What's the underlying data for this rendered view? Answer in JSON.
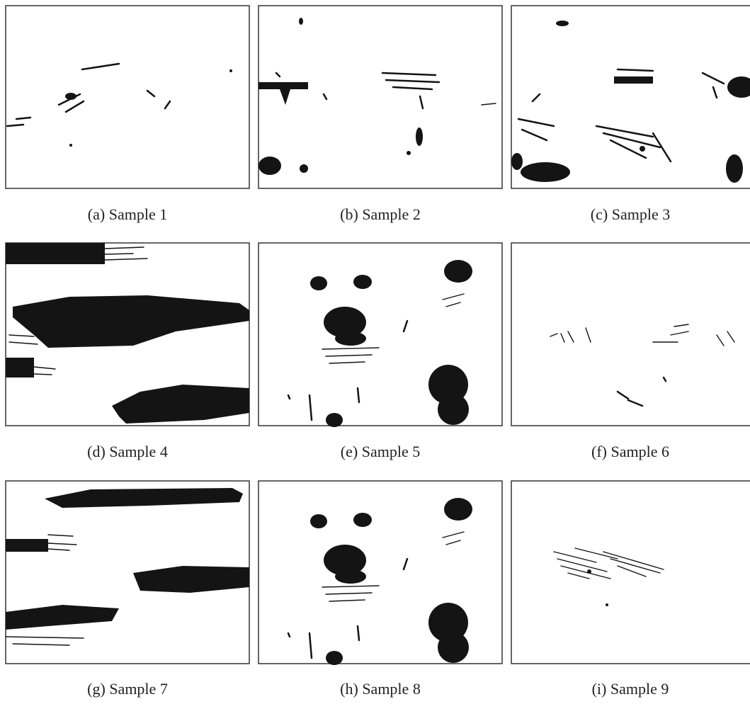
{
  "panels": [
    {
      "caption": "(a) Sample 1"
    },
    {
      "caption": "(b) Sample 2"
    },
    {
      "caption": "(c) Sample 3"
    },
    {
      "caption": "(d) Sample 4"
    },
    {
      "caption": "(e) Sample 5"
    },
    {
      "caption": "(f) Sample 6"
    },
    {
      "caption": "(g) Sample 7"
    },
    {
      "caption": "(h) Sample 8"
    },
    {
      "caption": "(i) Sample 9"
    }
  ]
}
